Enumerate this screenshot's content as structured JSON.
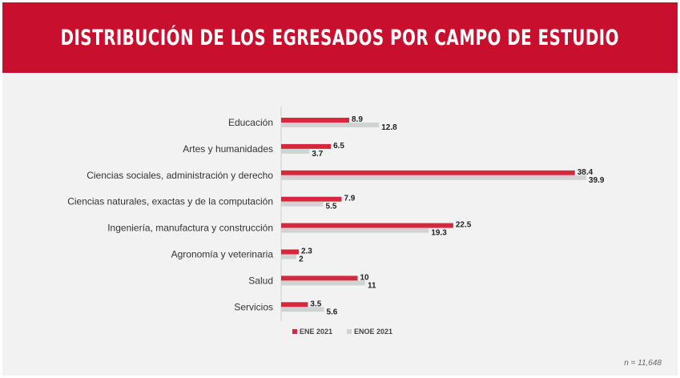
{
  "header": {
    "title": "DISTRIBUCIÓN DE LOS EGRESADOS POR CAMPO DE ESTUDIO"
  },
  "colors": {
    "banner": "#c8102e",
    "ene": "#d7263d",
    "enoe": "#cfd4d3"
  },
  "footnote": "n = 11,648",
  "chart_data": {
    "type": "bar",
    "orientation": "horizontal",
    "categories": [
      "Educación",
      "Artes y humanidades",
      "Ciencias sociales, administración y derecho",
      "Ciencias naturales, exactas y de la computación",
      "Ingeniería, manufactura y construcción",
      "Agronomía y veterinaria",
      "Salud",
      "Servicios"
    ],
    "series": [
      {
        "name": "ENE 2021",
        "color": "#d7263d",
        "values": [
          8.9,
          6.5,
          38.4,
          7.9,
          22.5,
          2.3,
          10,
          3.5
        ],
        "labels": [
          "8.9",
          "6.5",
          "38.4",
          "7.9",
          "22.5",
          "2.3",
          "10",
          "3.5"
        ]
      },
      {
        "name": "ENOE 2021",
        "color": "#cfd4d3",
        "values": [
          12.8,
          3.7,
          39.9,
          5.5,
          19.3,
          2,
          11,
          5.6
        ],
        "labels": [
          "12.8",
          "3.7",
          "39.9",
          "5.5",
          "19.3",
          "2",
          "11",
          "5.6"
        ]
      }
    ],
    "xlim": [
      0,
      40
    ],
    "grid": false,
    "legend": "bottom"
  }
}
